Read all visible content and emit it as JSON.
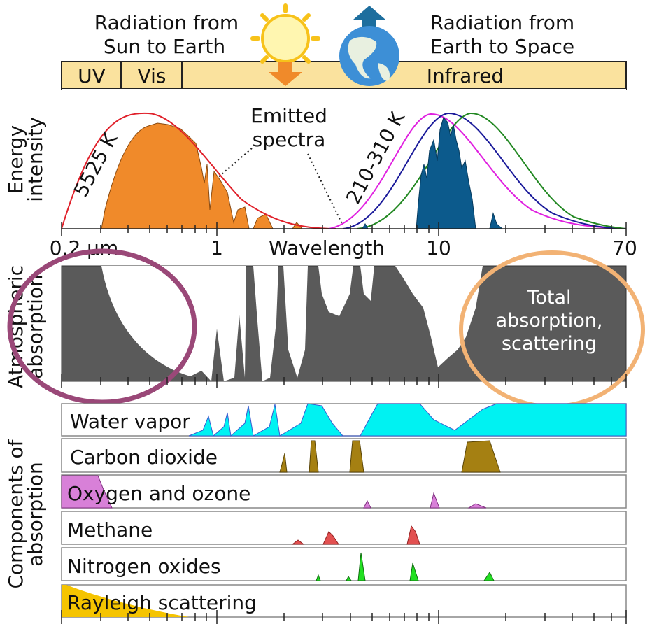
{
  "header": {
    "sun_label": [
      "Radiation from",
      "Sun to Earth"
    ],
    "earth_label": [
      "Radiation from",
      "Earth to Space"
    ]
  },
  "bands": [
    "UV",
    "Vis",
    "Infrared"
  ],
  "energy_panel": {
    "y_label": [
      "Energy",
      "intensity"
    ],
    "sun_temperature": "5525 K",
    "emitted_label": [
      "Emitted",
      "spectra"
    ],
    "earth_temperature": "210-310 K"
  },
  "axis": {
    "tick_labels": [
      "0.2 µm",
      "1",
      "10",
      "70"
    ],
    "title": "Wavelength"
  },
  "absorption_panel": {
    "y_label": [
      "Atmospheric",
      "absorption"
    ],
    "note": [
      "Total",
      "absorption,",
      "scattering"
    ]
  },
  "components": {
    "y_label": [
      "Components of",
      "absorption"
    ],
    "gases": [
      "Water vapor",
      "Carbon dioxide",
      "Oxygen and ozone",
      "Methane",
      "Nitrogen oxides",
      "Rayleigh scattering"
    ]
  }
}
